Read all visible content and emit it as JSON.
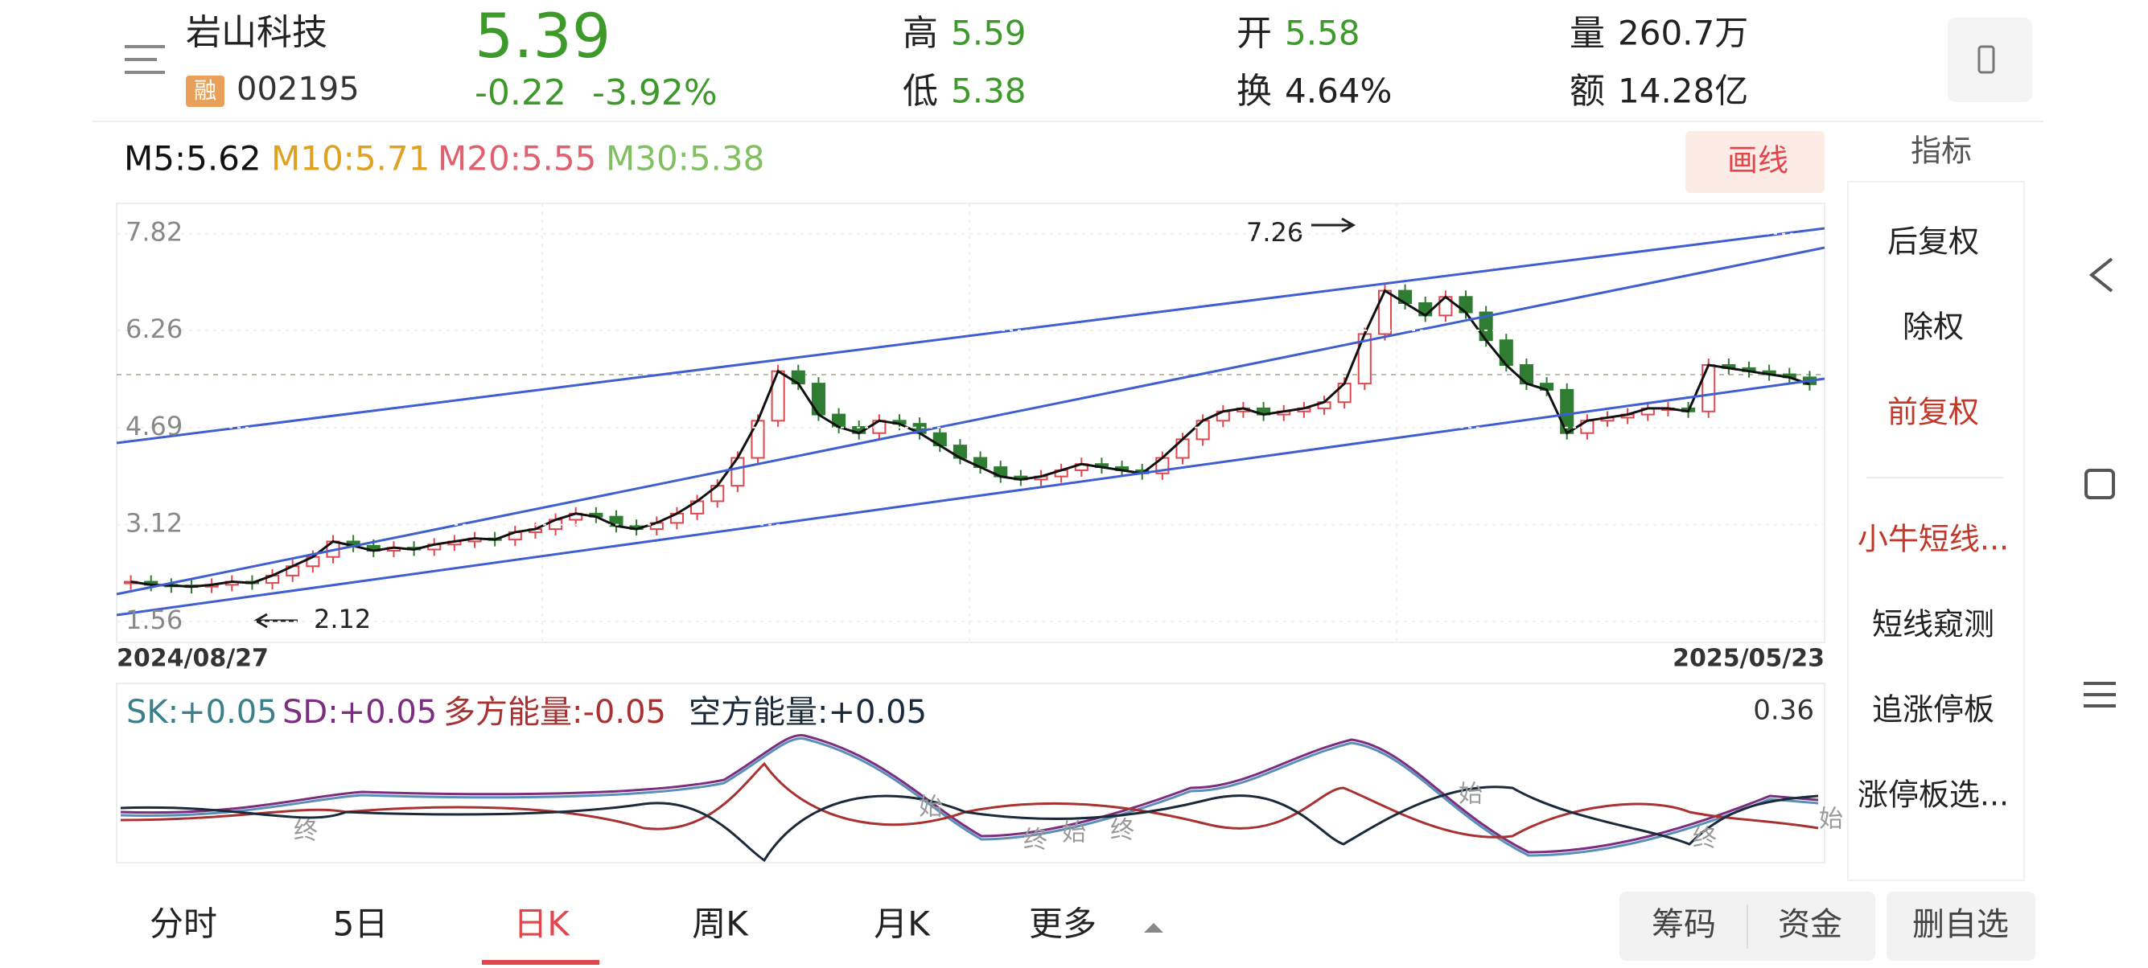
{
  "header": {
    "name": "岩山科技",
    "badge": "融",
    "code": "002195",
    "price": "5.39",
    "change": "-0.22",
    "change_pct": "-3.92%",
    "stats": [
      {
        "label": "高",
        "value": "5.59"
      },
      {
        "label": "低",
        "value": "5.38"
      },
      {
        "label": "开",
        "value": "5.58"
      },
      {
        "label": "换",
        "value": "4.64%"
      },
      {
        "label": "量",
        "value": "260.7万"
      },
      {
        "label": "额",
        "value": "14.28亿"
      }
    ]
  },
  "ma_legend": [
    "M5:5.62",
    "M10:5.71",
    "M20:5.55",
    "M30:5.38"
  ],
  "draw_button": "画线",
  "indicator_button": "指标",
  "side_menu": [
    "后复权",
    "除权",
    "前复权",
    "小牛短线...",
    "短线窥测",
    "追涨停板",
    "涨停板选..."
  ],
  "chart_data": {
    "type": "candlestick",
    "ylim": [
      1.22,
      8.31
    ],
    "yticks": [
      7.82,
      6.26,
      4.69,
      3.12,
      1.56
    ],
    "start_date": "2024/08/27",
    "end_date": "2025/05/23",
    "high_label": "7.26",
    "low_label": "2.12",
    "up_color": "#e0474c",
    "down_color": "#2f7d32",
    "values": [
      2.2,
      2.15,
      2.14,
      2.12,
      2.15,
      2.2,
      2.18,
      2.3,
      2.45,
      2.6,
      2.85,
      2.78,
      2.7,
      2.75,
      2.72,
      2.8,
      2.85,
      2.9,
      2.88,
      3.0,
      3.05,
      3.2,
      3.3,
      3.25,
      3.1,
      3.05,
      3.15,
      3.3,
      3.5,
      3.75,
      4.2,
      4.8,
      5.6,
      5.4,
      4.9,
      4.7,
      4.6,
      4.8,
      4.75,
      4.6,
      4.4,
      4.2,
      4.05,
      3.9,
      3.85,
      3.9,
      4.0,
      4.1,
      4.05,
      4.0,
      3.95,
      4.2,
      4.5,
      4.8,
      4.95,
      5.0,
      4.9,
      4.95,
      5.0,
      5.1,
      5.4,
      6.2,
      6.9,
      6.7,
      6.5,
      6.8,
      6.55,
      6.1,
      5.7,
      5.4,
      5.3,
      4.6,
      4.8,
      4.85,
      4.9,
      5.0,
      5.0,
      4.95,
      5.7,
      5.65,
      5.6,
      5.55,
      5.5,
      5.39
    ]
  },
  "sub_chart": {
    "legend": [
      "SK:+0.05",
      "SD:+0.05",
      "多方能量:-0.05",
      "空方能量:+0.05"
    ],
    "max_label": "0.36",
    "markers": [
      "终",
      "始",
      "终",
      "始",
      "终",
      "始",
      "终",
      "始"
    ]
  },
  "tabs": [
    "分时",
    "5日",
    "日K",
    "周K",
    "月K",
    "更多"
  ],
  "bottom_buttons": [
    "筹码",
    "资金",
    "删自选"
  ]
}
